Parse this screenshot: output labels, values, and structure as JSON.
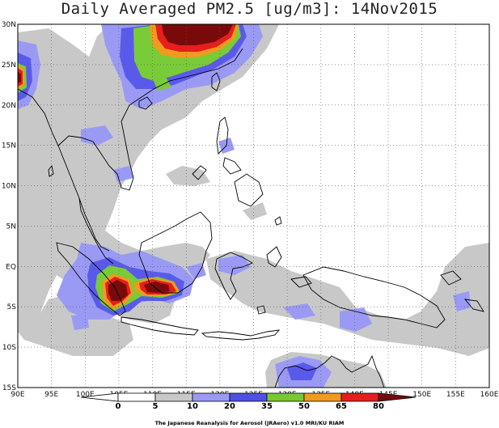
{
  "title": "Daily Averaged PM2.5 [ug/m3]: 14Nov2015",
  "credit": "The Japanese Reanalysis for Aerosol (JRAero) v1.0 MRI/KU RIAM",
  "map": {
    "lon_range": [
      90,
      160
    ],
    "lat_range": [
      -15,
      30
    ],
    "lon_ticks": [
      "90E",
      "95E",
      "100E",
      "105E",
      "110E",
      "115E",
      "120E",
      "125E",
      "130E",
      "135E",
      "140E",
      "145E",
      "150E",
      "155E",
      "160E"
    ],
    "lat_ticks": [
      "30N",
      "25N",
      "20N",
      "15N",
      "10N",
      "5N",
      "EQ",
      "5S",
      "10S",
      "15S"
    ],
    "gridlines": "dotted"
  },
  "colorbar": {
    "labels": [
      "0",
      "5",
      "10",
      "20",
      "35",
      "50",
      "65",
      "80"
    ],
    "colors": [
      "#ffffff",
      "#ffffff",
      "#c8c8c8",
      "#9a9af5",
      "#5050e6",
      "#78c832",
      "#f09a1e",
      "#e61e1e",
      "#7a0a0a"
    ]
  },
  "colors": {
    "level_10": "#c8c8c8",
    "level_20": "#9a9af5",
    "level_35": "#5a5aea",
    "level_50": "#7acb38",
    "level_65": "#f09a1e",
    "level_80": "#e61e1e",
    "level_max": "#7a0a0a",
    "coastline": "#000000"
  }
}
